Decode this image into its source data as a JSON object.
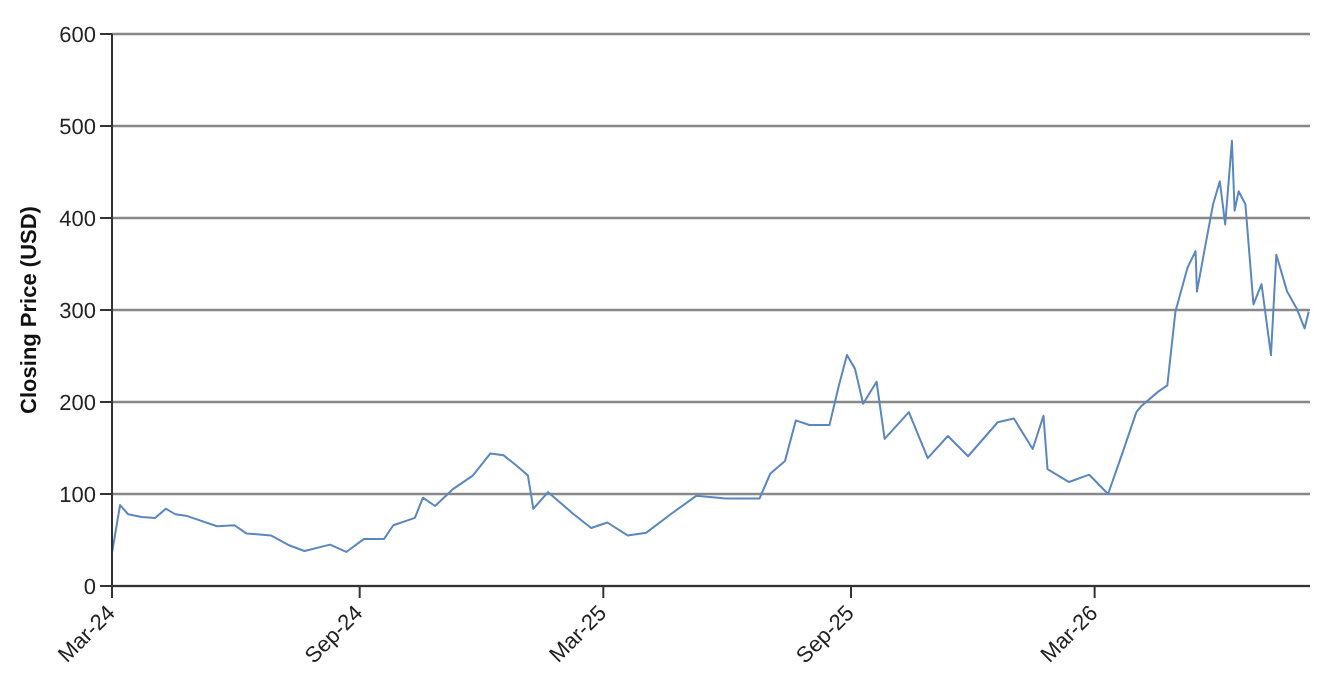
{
  "chart_data": {
    "type": "line",
    "ylabel": "Closing Price (USD)",
    "xlim": [
      "2024-03-01",
      "2026-08-08"
    ],
    "xticks": [
      {
        "value": "2024-03-01",
        "label": "Mar-24"
      },
      {
        "value": "2024-09-01",
        "label": "Sep-24"
      },
      {
        "value": "2025-03-01",
        "label": "Mar-25"
      },
      {
        "value": "2025-09-01",
        "label": "Sep-25"
      },
      {
        "value": "2026-03-01",
        "label": "Mar-26"
      }
    ],
    "ylim": [
      0,
      600
    ],
    "yticks": [
      0,
      100,
      200,
      300,
      400,
      500,
      600
    ],
    "grid": "y",
    "marker": "none",
    "line_style": "solid",
    "x": [
      "2024-03-01",
      "2024-03-07",
      "2024-03-13",
      "2024-03-23",
      "2024-04-02",
      "2024-04-10",
      "2024-04-17",
      "2024-04-26",
      "2024-05-18",
      "2024-05-31",
      "2024-06-09",
      "2024-06-27",
      "2024-07-11",
      "2024-07-22",
      "2024-08-10",
      "2024-08-22",
      "2024-09-04",
      "2024-09-19",
      "2024-09-26",
      "2024-10-12",
      "2024-10-18",
      "2024-10-27",
      "2024-11-09",
      "2024-11-24",
      "2024-12-07",
      "2024-12-17",
      "2024-12-28",
      "2025-01-04",
      "2025-01-08",
      "2025-01-19",
      "2025-02-07",
      "2025-02-20",
      "2025-03-04",
      "2025-03-19",
      "2025-04-02",
      "2025-04-21",
      "2025-05-09",
      "2025-05-31",
      "2025-06-25",
      "2025-07-03",
      "2025-07-14",
      "2025-07-22",
      "2025-08-01",
      "2025-08-16",
      "2025-08-23",
      "2025-08-29",
      "2025-09-04",
      "2025-09-10",
      "2025-09-20",
      "2025-09-26",
      "2025-10-14",
      "2025-10-28",
      "2025-11-12",
      "2025-11-27",
      "2025-12-19",
      "2025-12-31",
      "2026-01-14",
      "2026-01-22",
      "2026-01-25",
      "2026-02-10",
      "2026-02-25",
      "2026-03-11",
      "2026-03-22",
      "2026-04-01",
      "2026-04-05",
      "2026-04-17",
      "2026-04-24",
      "2026-04-30",
      "2026-05-09",
      "2026-05-15",
      "2026-05-16",
      "2026-05-22",
      "2026-05-28",
      "2026-06-02",
      "2026-06-06",
      "2026-06-11",
      "2026-06-13",
      "2026-06-16",
      "2026-06-21",
      "2026-06-27",
      "2026-07-03",
      "2026-07-10",
      "2026-07-14",
      "2026-07-22",
      "2026-07-29",
      "2026-08-04",
      "2026-08-07"
    ],
    "series": [
      {
        "color": "#5b87c0",
        "values": [
          36,
          88,
          78,
          75,
          74,
          84,
          78,
          76,
          65,
          66,
          57,
          55,
          44,
          38,
          45,
          37,
          51,
          51,
          66,
          74,
          96,
          87,
          105,
          120,
          144,
          142,
          129,
          120,
          84,
          102,
          78,
          63,
          69,
          55,
          58,
          79,
          98,
          95,
          95,
          122,
          136,
          180,
          175,
          175,
          218,
          251,
          236,
          198,
          222,
          160,
          189,
          139,
          163,
          141,
          178,
          182,
          149,
          185,
          127,
          113,
          121,
          100,
          146,
          189,
          196,
          211,
          218,
          298,
          346,
          364,
          320,
          368,
          415,
          440,
          393,
          484,
          408,
          429,
          415,
          306,
          328,
          251,
          360,
          320,
          302,
          280,
          298
        ]
      }
    ]
  }
}
